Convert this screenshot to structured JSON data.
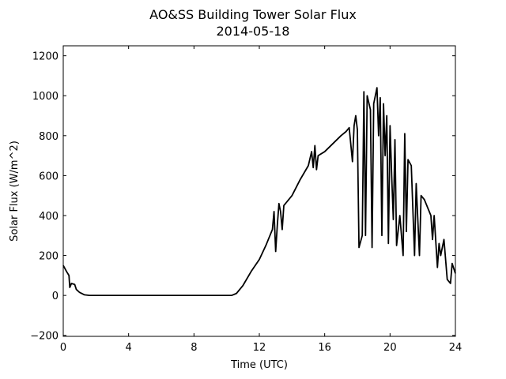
{
  "chart_data": {
    "type": "line",
    "title": "AO&SS Building Tower Solar Flux",
    "subtitle": "2014-05-18",
    "xlabel": "Time (UTC)",
    "ylabel": "Solar Flux (W/m^2)",
    "color": "#000000",
    "x": [
      0,
      0.2,
      0.35,
      0.4,
      0.5,
      0.7,
      0.8,
      1.0,
      1.3,
      1.6,
      10.3,
      10.6,
      11,
      11.5,
      12,
      12.4,
      12.8,
      12.9,
      13.0,
      13.1,
      13.2,
      13.3,
      13.4,
      13.5,
      14,
      14.5,
      15,
      15.2,
      15.3,
      15.4,
      15.5,
      15.6,
      16,
      16.5,
      17,
      17.3,
      17.5,
      17.7,
      17.8,
      17.9,
      18.0,
      18.1,
      18.3,
      18.4,
      18.5,
      18.6,
      18.8,
      18.9,
      19.0,
      19.2,
      19.3,
      19.4,
      19.5,
      19.6,
      19.7,
      19.8,
      19.9,
      20.0,
      20.1,
      20.2,
      20.3,
      20.4,
      20.6,
      20.8,
      20.9,
      21.0,
      21.1,
      21.3,
      21.5,
      21.6,
      21.8,
      21.9,
      22.1,
      22.5,
      22.6,
      22.7,
      22.9,
      23.0,
      23.1,
      23.3,
      23.5,
      23.7,
      23.8,
      24
    ],
    "values": [
      150,
      120,
      100,
      40,
      60,
      55,
      30,
      15,
      3,
      0,
      0,
      10,
      50,
      120,
      180,
      250,
      330,
      420,
      220,
      350,
      460,
      420,
      330,
      450,
      500,
      580,
      650,
      720,
      640,
      750,
      630,
      700,
      720,
      760,
      800,
      820,
      840,
      670,
      850,
      900,
      830,
      240,
      300,
      1020,
      300,
      1000,
      930,
      240,
      960,
      1040,
      800,
      990,
      300,
      960,
      700,
      900,
      260,
      850,
      600,
      380,
      780,
      250,
      400,
      200,
      810,
      320,
      680,
      650,
      200,
      560,
      200,
      500,
      480,
      400,
      280,
      400,
      140,
      260,
      200,
      280,
      80,
      60,
      160,
      110
    ],
    "xlim": [
      0,
      24
    ],
    "xticks": [
      0,
      4,
      8,
      12,
      16,
      20,
      24
    ],
    "ylim": [
      -205,
      1250
    ],
    "yticks": [
      {
        "value": -200,
        "label": "−200"
      },
      0,
      200,
      400,
      600,
      800,
      1000,
      1200
    ]
  }
}
